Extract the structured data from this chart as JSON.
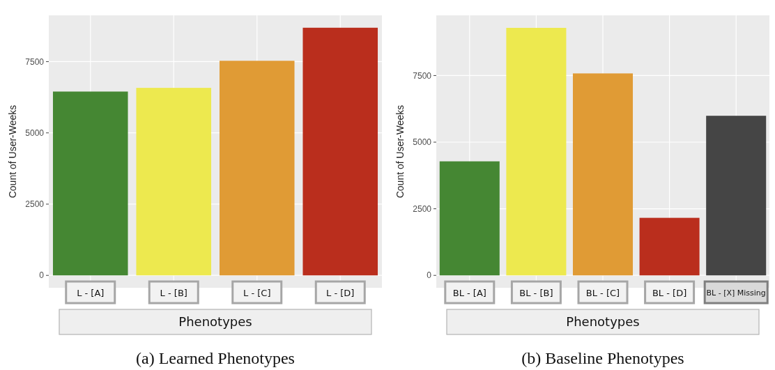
{
  "chart_data": [
    {
      "type": "bar",
      "title": "(a) Learned Phenotypes",
      "xlabel": "Phenotypes",
      "ylabel": "Count of User-Weeks",
      "categories": [
        "L - [A]",
        "L - [B]",
        "L - [C]",
        "L - [D]"
      ],
      "values": [
        6450,
        6580,
        7530,
        8690
      ],
      "colors": [
        "#458733",
        "#ede94f",
        "#e09b35",
        "#ba2e1d"
      ],
      "ylim": [
        -435,
        9125
      ],
      "yticks": [
        0,
        2500,
        5000,
        7500
      ],
      "grid": true
    },
    {
      "type": "bar",
      "title": "(b) Baseline Phenotypes",
      "xlabel": "Phenotypes",
      "ylabel": "Count of User-Weeks",
      "categories": [
        "BL - [A]",
        "BL - [B]",
        "BL - [C]",
        "BL - [D]",
        "BL - [X] Missing"
      ],
      "values": [
        4280,
        9290,
        7580,
        2160,
        5990
      ],
      "colors": [
        "#458733",
        "#ede94f",
        "#e09b35",
        "#ba2e1d",
        "#454545"
      ],
      "ylim": [
        -465,
        9760
      ],
      "yticks": [
        0,
        2500,
        5000,
        7500
      ],
      "grid": true
    }
  ]
}
